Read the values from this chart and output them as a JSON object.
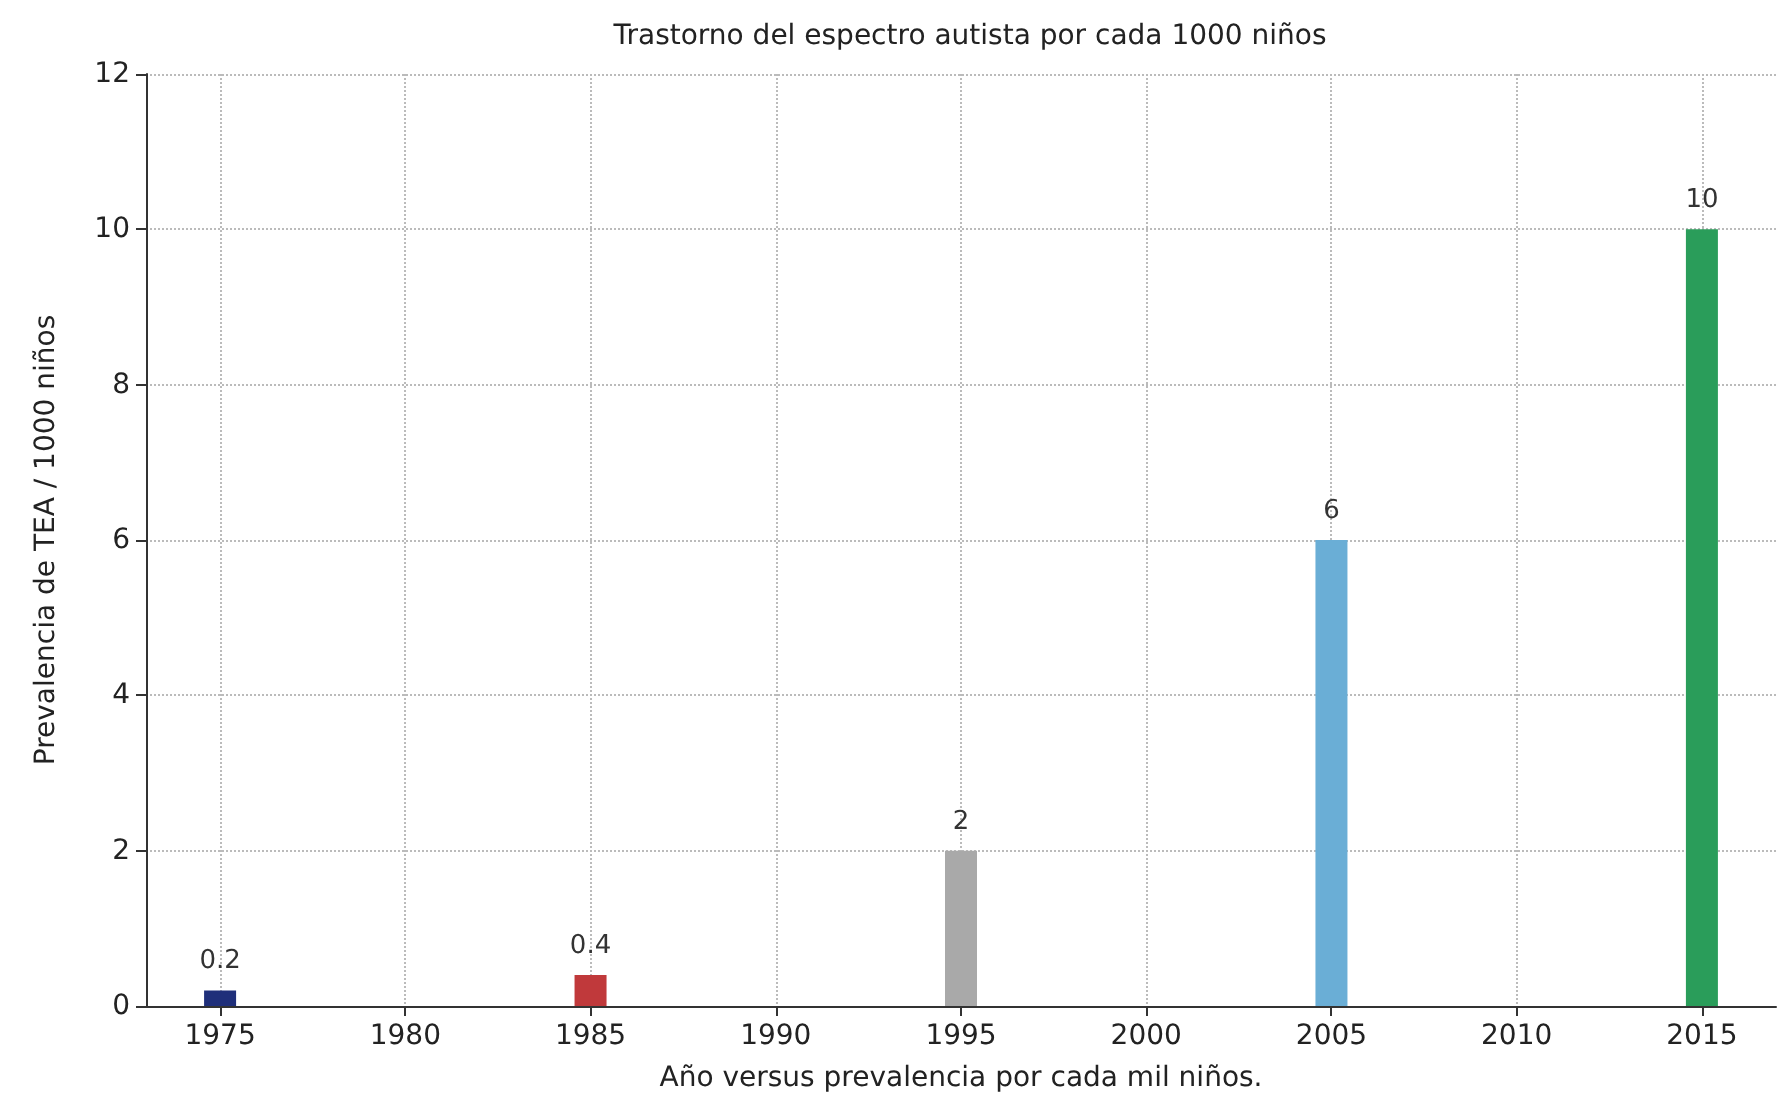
{
  "chart_data": {
    "type": "bar",
    "title": "Trastorno del espectro autista por cada 1000 niños",
    "xlabel": "Año versus prevalencia por cada mil niños.",
    "ylabel": "Prevalencia de TEA / 1000 niños",
    "x": [
      1975,
      1985,
      1995,
      2005,
      2015
    ],
    "values": [
      0.2,
      0.4,
      2,
      6,
      10
    ],
    "colors": [
      "#1f2f7a",
      "#c0393b",
      "#a9a9a9",
      "#6aaed6",
      "#2a9d5a"
    ],
    "xlim": [
      1973,
      2017
    ],
    "xticks": [
      1975,
      1980,
      1985,
      1990,
      1995,
      2000,
      2005,
      2010,
      2015
    ],
    "ylim": [
      0,
      12
    ],
    "yticks": [
      0,
      2,
      4,
      6,
      8,
      10,
      12
    ],
    "grid": true,
    "data_labels": true
  }
}
